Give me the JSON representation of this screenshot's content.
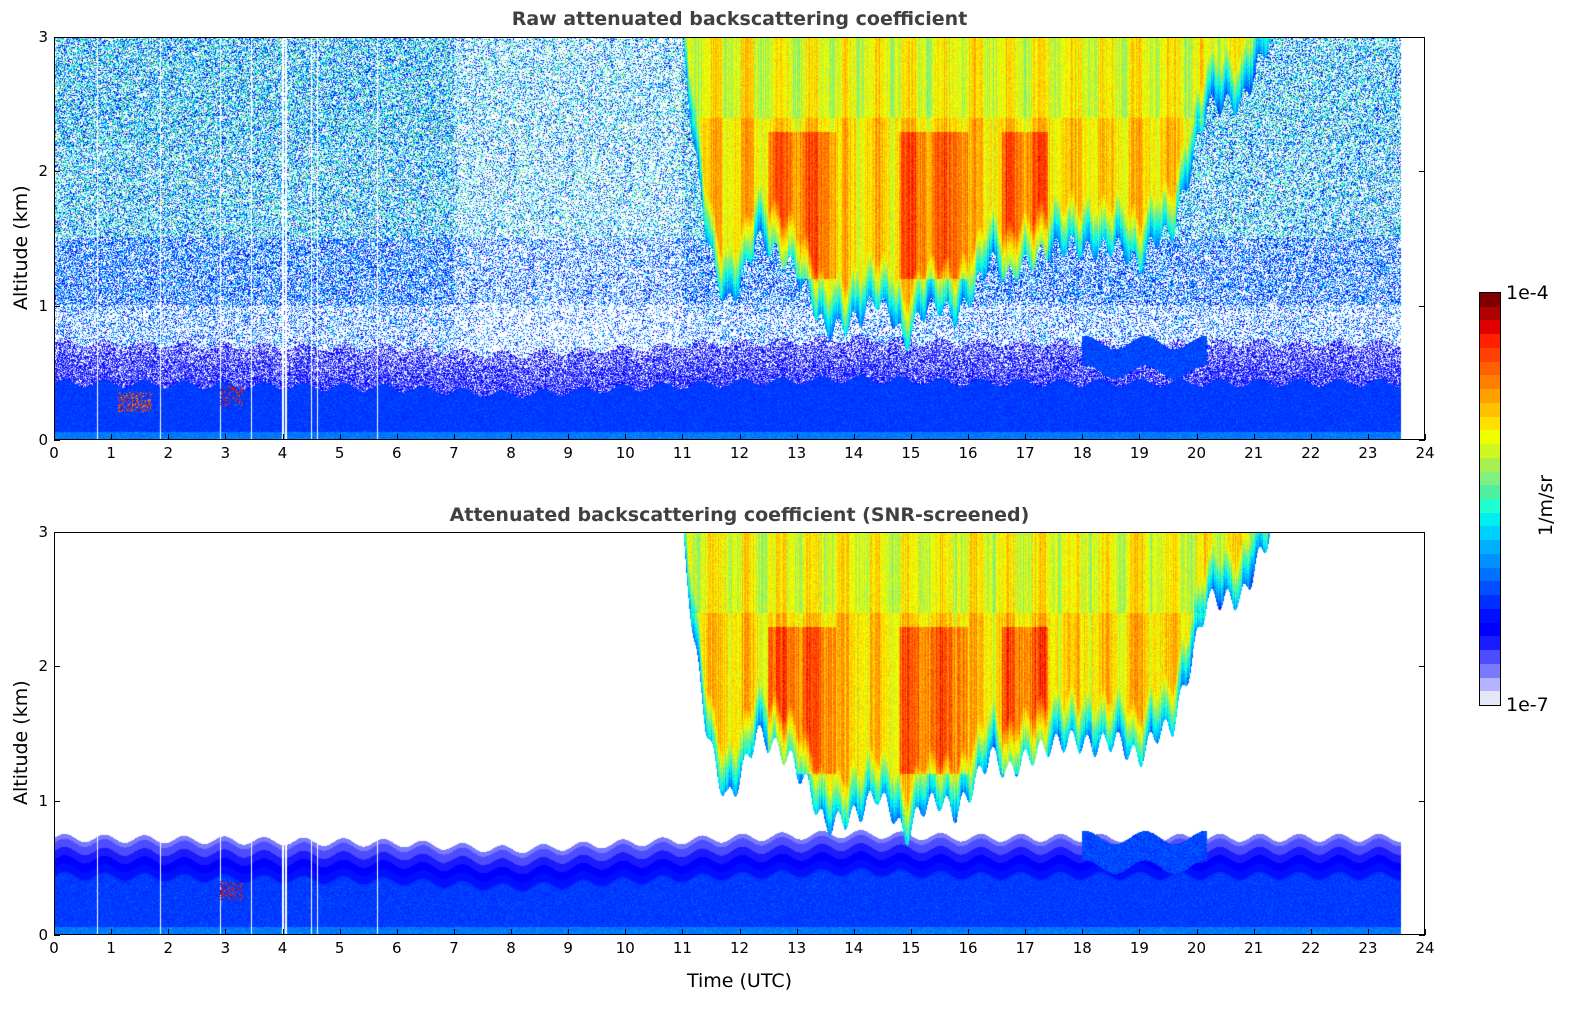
{
  "chart_data": [
    {
      "type": "heatmap",
      "title": "Raw attenuated backscattering coefficient",
      "xlabel": "",
      "ylabel": "Altitude (km)",
      "xlim": [
        0,
        24
      ],
      "ylim": [
        0,
        3
      ],
      "xticks": [
        "0",
        "1",
        "2",
        "3",
        "4",
        "5",
        "6",
        "7",
        "8",
        "9",
        "10",
        "11",
        "12",
        "13",
        "14",
        "15",
        "16",
        "17",
        "18",
        "19",
        "20",
        "21",
        "22",
        "23",
        "24"
      ],
      "yticks": [
        "0",
        "1",
        "2",
        "3"
      ],
      "screened": false
    },
    {
      "type": "heatmap",
      "title": "Attenuated backscattering coefficient (SNR-screened)",
      "xlabel": "Time (UTC)",
      "ylabel": "Altitude (km)",
      "xlim": [
        0,
        24
      ],
      "ylim": [
        0,
        3
      ],
      "xticks": [
        "0",
        "1",
        "2",
        "3",
        "4",
        "5",
        "6",
        "7",
        "8",
        "9",
        "10",
        "11",
        "12",
        "13",
        "14",
        "15",
        "16",
        "17",
        "18",
        "19",
        "20",
        "21",
        "22",
        "23",
        "24"
      ],
      "yticks": [
        "0",
        "1",
        "2",
        "3"
      ],
      "screened": true
    }
  ],
  "field": {
    "data_end_utc": 23.6,
    "data_gaps_utc": [
      0.75,
      1.85,
      2.9,
      3.45,
      4.0,
      4.05,
      4.5,
      4.6,
      5.65
    ],
    "boundary_layer_top_km": [
      [
        0,
        0.42
      ],
      [
        3,
        0.4
      ],
      [
        6,
        0.38
      ],
      [
        8,
        0.33
      ],
      [
        10,
        0.38
      ],
      [
        12,
        0.42
      ],
      [
        14,
        0.45
      ],
      [
        16,
        0.42
      ],
      [
        18,
        0.42
      ],
      [
        20,
        0.42
      ],
      [
        23.6,
        0.42
      ]
    ],
    "aerosol_plume": {
      "start": 18.0,
      "end": 20.2,
      "altitude_km": [
        0.5,
        0.72
      ]
    },
    "cloud_base_km": [
      [
        11.0,
        3.0
      ],
      [
        11.2,
        2.2
      ],
      [
        11.4,
        1.6
      ],
      [
        11.6,
        1.2
      ],
      [
        11.8,
        1.0
      ],
      [
        12.0,
        1.15
      ],
      [
        12.3,
        1.5
      ],
      [
        12.6,
        1.4
      ],
      [
        12.9,
        1.3
      ],
      [
        13.2,
        1.1
      ],
      [
        13.5,
        0.8
      ],
      [
        13.8,
        0.85
      ],
      [
        14.1,
        0.9
      ],
      [
        14.4,
        1.05
      ],
      [
        14.7,
        0.9
      ],
      [
        14.9,
        0.7
      ],
      [
        15.2,
        0.95
      ],
      [
        15.5,
        1.0
      ],
      [
        15.8,
        0.9
      ],
      [
        16.1,
        1.1
      ],
      [
        16.4,
        1.35
      ],
      [
        16.7,
        1.2
      ],
      [
        17.0,
        1.3
      ],
      [
        17.4,
        1.4
      ],
      [
        17.8,
        1.45
      ],
      [
        18.2,
        1.4
      ],
      [
        18.6,
        1.45
      ],
      [
        19.0,
        1.3
      ],
      [
        19.3,
        1.5
      ],
      [
        19.6,
        1.55
      ],
      [
        19.9,
        2.0
      ],
      [
        20.2,
        2.5
      ],
      [
        20.8,
        2.5
      ],
      [
        21.1,
        2.8
      ],
      [
        21.3,
        3.0
      ]
    ],
    "cloud_peak_regions_utc": [
      [
        12.5,
        13.7
      ],
      [
        14.8,
        16.0
      ],
      [
        16.6,
        17.4
      ]
    ]
  },
  "colorbar": {
    "label": "1/m/sr",
    "min_label": "1e-7",
    "max_label": "1e-4",
    "range_log10": [
      -7,
      -4
    ],
    "colormap": [
      "#e6e6fa",
      "#b3b3ff",
      "#7a7aff",
      "#4d4dff",
      "#1a1aff",
      "#0000ff",
      "#0010ff",
      "#0030ff",
      "#0050ff",
      "#0070ff",
      "#0090ff",
      "#00b0ff",
      "#00d0ff",
      "#00f0f0",
      "#20ffd0",
      "#50f0a0",
      "#80f080",
      "#a8f050",
      "#d0f820",
      "#f0ff00",
      "#ffe000",
      "#ffc000",
      "#ffa000",
      "#ff8000",
      "#ff6000",
      "#ff4000",
      "#ff2000",
      "#e00000",
      "#b00000",
      "#800000"
    ]
  }
}
